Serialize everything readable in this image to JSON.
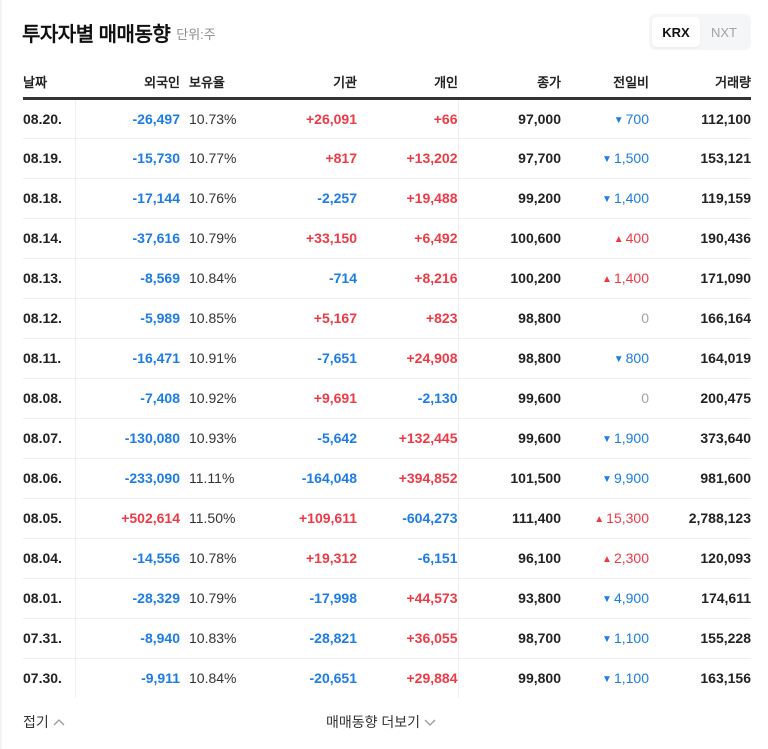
{
  "header": {
    "title": "투자자별 매매동향",
    "unit": "단위:주"
  },
  "market_toggle": {
    "options": [
      {
        "label": "KRX",
        "active": true
      },
      {
        "label": "NXT",
        "active": false
      }
    ]
  },
  "table": {
    "columns": [
      "날짜",
      "외국인",
      "보유율",
      "기관",
      "개인",
      "종가",
      "전일비",
      "거래량"
    ],
    "rows": [
      {
        "date": "08.20.",
        "foreign": "-26,497",
        "ratio": "10.73%",
        "inst": "+26,091",
        "indiv": "+66",
        "close": "97,000",
        "change": "700",
        "change_dir": "down",
        "volume": "112,100"
      },
      {
        "date": "08.19.",
        "foreign": "-15,730",
        "ratio": "10.77%",
        "inst": "+817",
        "indiv": "+13,202",
        "close": "97,700",
        "change": "1,500",
        "change_dir": "down",
        "volume": "153,121"
      },
      {
        "date": "08.18.",
        "foreign": "-17,144",
        "ratio": "10.76%",
        "inst": "-2,257",
        "indiv": "+19,488",
        "close": "99,200",
        "change": "1,400",
        "change_dir": "down",
        "volume": "119,159"
      },
      {
        "date": "08.14.",
        "foreign": "-37,616",
        "ratio": "10.79%",
        "inst": "+33,150",
        "indiv": "+6,492",
        "close": "100,600",
        "change": "400",
        "change_dir": "up",
        "volume": "190,436"
      },
      {
        "date": "08.13.",
        "foreign": "-8,569",
        "ratio": "10.84%",
        "inst": "-714",
        "indiv": "+8,216",
        "close": "100,200",
        "change": "1,400",
        "change_dir": "up",
        "volume": "171,090"
      },
      {
        "date": "08.12.",
        "foreign": "-5,989",
        "ratio": "10.85%",
        "inst": "+5,167",
        "indiv": "+823",
        "close": "98,800",
        "change": "0",
        "change_dir": "flat",
        "volume": "166,164"
      },
      {
        "date": "08.11.",
        "foreign": "-16,471",
        "ratio": "10.91%",
        "inst": "-7,651",
        "indiv": "+24,908",
        "close": "98,800",
        "change": "800",
        "change_dir": "down",
        "volume": "164,019"
      },
      {
        "date": "08.08.",
        "foreign": "-7,408",
        "ratio": "10.92%",
        "inst": "+9,691",
        "indiv": "-2,130",
        "close": "99,600",
        "change": "0",
        "change_dir": "flat",
        "volume": "200,475"
      },
      {
        "date": "08.07.",
        "foreign": "-130,080",
        "ratio": "10.93%",
        "inst": "-5,642",
        "indiv": "+132,445",
        "close": "99,600",
        "change": "1,900",
        "change_dir": "down",
        "volume": "373,640"
      },
      {
        "date": "08.06.",
        "foreign": "-233,090",
        "ratio": "11.11%",
        "inst": "-164,048",
        "indiv": "+394,852",
        "close": "101,500",
        "change": "9,900",
        "change_dir": "down",
        "volume": "981,600"
      },
      {
        "date": "08.05.",
        "foreign": "+502,614",
        "ratio": "11.50%",
        "inst": "+109,611",
        "indiv": "-604,273",
        "close": "111,400",
        "change": "15,300",
        "change_dir": "up",
        "volume": "2,788,123"
      },
      {
        "date": "08.04.",
        "foreign": "-14,556",
        "ratio": "10.78%",
        "inst": "+19,312",
        "indiv": "-6,151",
        "close": "96,100",
        "change": "2,300",
        "change_dir": "up",
        "volume": "120,093"
      },
      {
        "date": "08.01.",
        "foreign": "-28,329",
        "ratio": "10.79%",
        "inst": "-17,998",
        "indiv": "+44,573",
        "close": "93,800",
        "change": "4,900",
        "change_dir": "down",
        "volume": "174,611"
      },
      {
        "date": "07.31.",
        "foreign": "-8,940",
        "ratio": "10.83%",
        "inst": "-28,821",
        "indiv": "+36,055",
        "close": "98,700",
        "change": "1,100",
        "change_dir": "down",
        "volume": "155,228"
      },
      {
        "date": "07.30.",
        "foreign": "-9,911",
        "ratio": "10.84%",
        "inst": "-20,651",
        "indiv": "+29,884",
        "close": "99,800",
        "change": "1,100",
        "change_dir": "down",
        "volume": "163,156"
      }
    ]
  },
  "footer": {
    "fold_label": "접기",
    "more_label": "매매동향 더보기"
  },
  "colors": {
    "positive": "#ee3a45",
    "negative": "#1c7ce6",
    "flat": "#a0a4aa"
  },
  "icons": {
    "up_arrow": "▲",
    "down_arrow": "▼"
  }
}
